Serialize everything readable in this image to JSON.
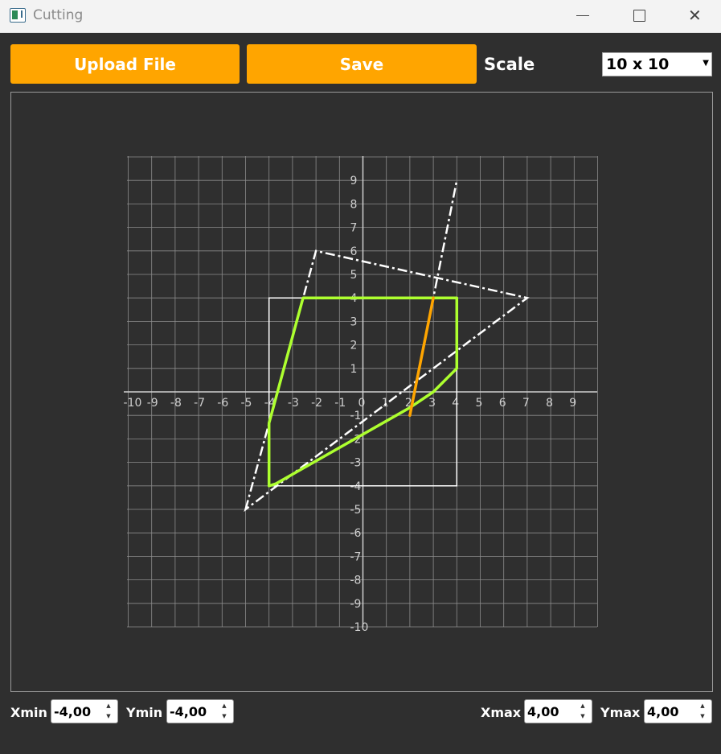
{
  "window": {
    "title": "Cutting"
  },
  "toolbar": {
    "upload_label": "Upload File",
    "save_label": "Save",
    "scale_label": "Scale",
    "scale_value": "10 x 10"
  },
  "colors": {
    "accent": "#ffa500",
    "background": "#2f2f2f",
    "clip_rect": "#ffffff",
    "polygon_outline": "#ffffff",
    "clipped_polygon": "#adff2f",
    "clipped_line": "#ffa500",
    "grid": "#8c8c8c"
  },
  "plot": {
    "x_ticks": [
      "-10",
      "-9",
      "-8",
      "-7",
      "-6",
      "-5",
      "-4",
      "-3",
      "-2",
      "-1",
      "0",
      "1",
      "2",
      "3",
      "4",
      "5",
      "6",
      "7",
      "8",
      "9"
    ],
    "y_ticks": [
      "9",
      "8",
      "7",
      "6",
      "5",
      "4",
      "3",
      "2",
      "1",
      "-1",
      "-2",
      "-3",
      "-4",
      "-5",
      "-6",
      "-7",
      "-8",
      "-9",
      "-10"
    ],
    "xlim": [
      -10,
      10
    ],
    "ylim": [
      -10,
      10
    ],
    "clip_rect": [
      [
        -4,
        -4
      ],
      [
        4,
        -4
      ],
      [
        4,
        4
      ],
      [
        -4,
        4
      ]
    ],
    "polygon": [
      [
        -5,
        -5
      ],
      [
        -2,
        6
      ],
      [
        7,
        4
      ]
    ],
    "line": [
      [
        2,
        -1
      ],
      [
        4,
        9
      ]
    ],
    "clipped_polygon": [
      [
        -4,
        -1.33
      ],
      [
        -2.55,
        4
      ],
      [
        4,
        4
      ],
      [
        4,
        1
      ],
      [
        3,
        0
      ],
      [
        2,
        -0.67
      ],
      [
        -3.71,
        -3.91
      ],
      [
        -4,
        -4
      ]
    ],
    "clipped_line": [
      [
        2,
        -1
      ],
      [
        3,
        4
      ]
    ]
  },
  "bounds": {
    "xmin_label": "Xmin",
    "xmin": "-4,00",
    "ymin_label": "Ymin",
    "ymin": "-4,00",
    "xmax_label": "Xmax",
    "xmax": "4,00",
    "ymax_label": "Ymax",
    "ymax": "4,00"
  },
  "icons": {
    "minimize": "minimize-icon",
    "maximize": "maximize-icon",
    "close": "close-icon"
  }
}
